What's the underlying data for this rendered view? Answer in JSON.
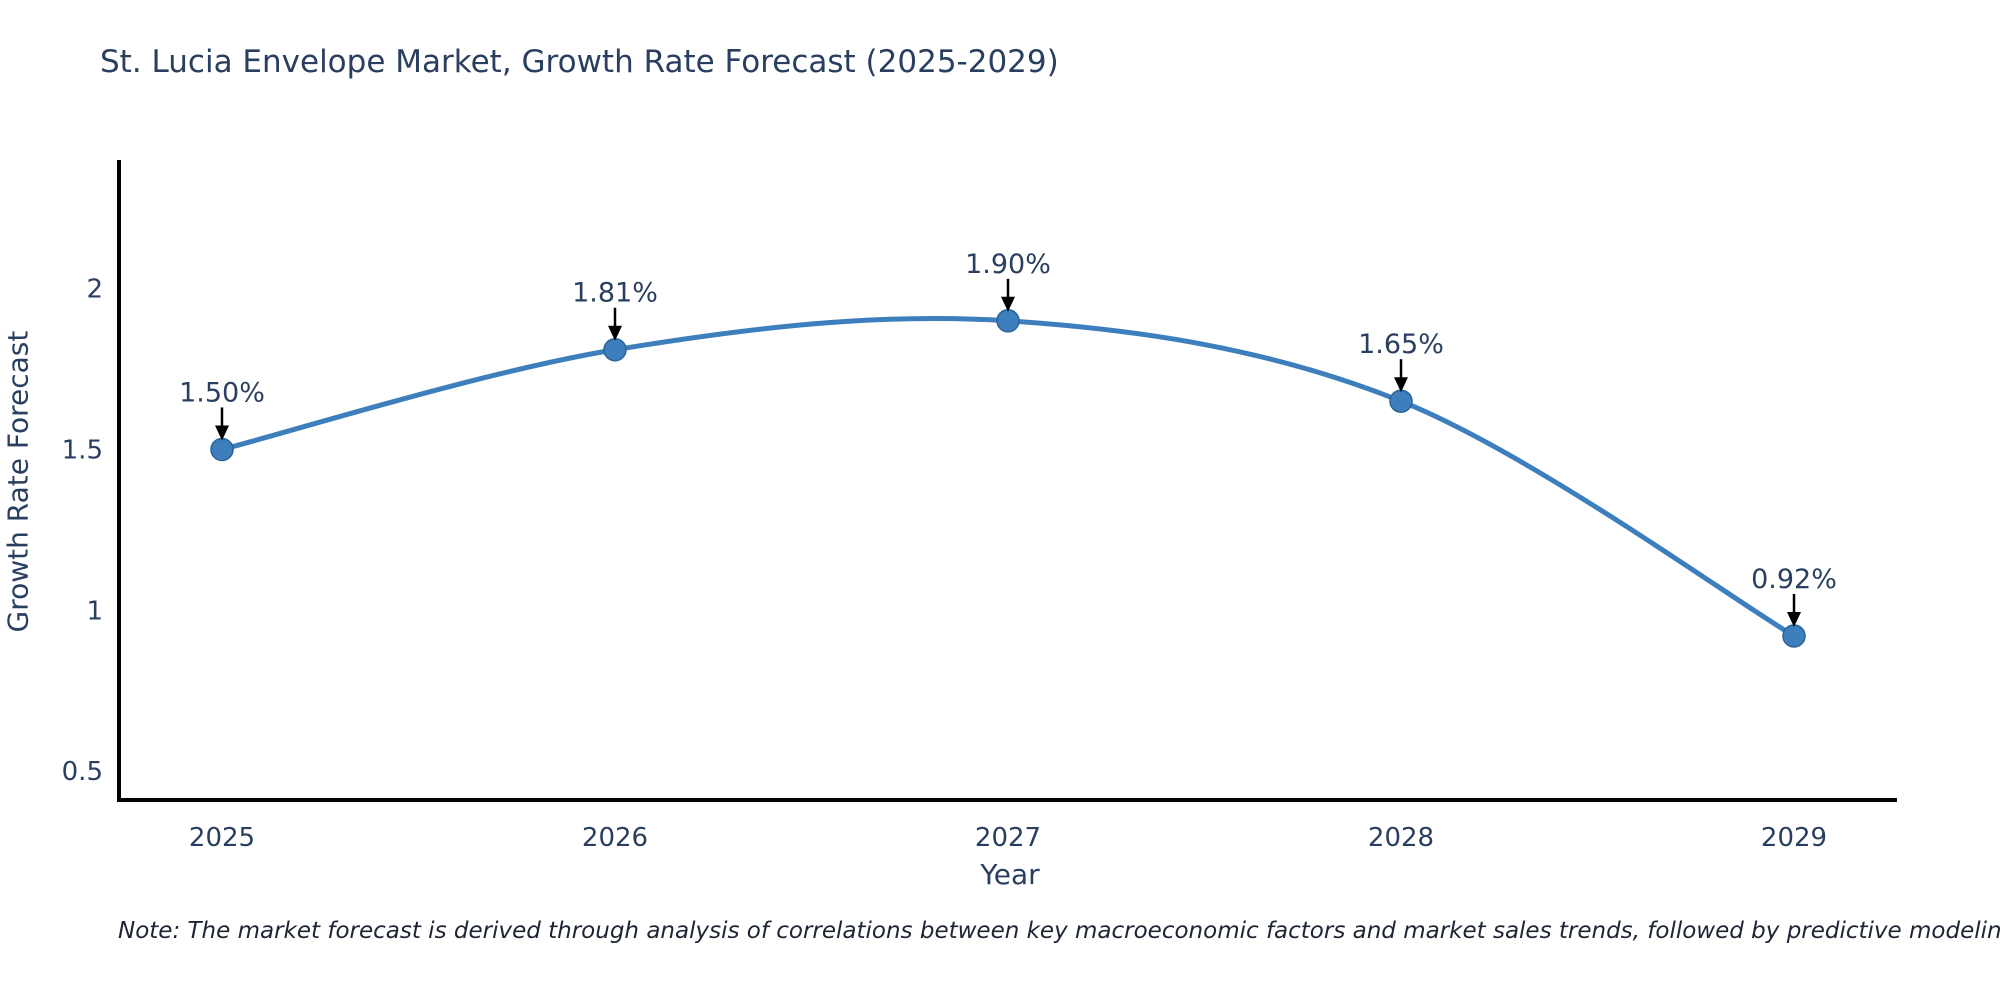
{
  "page": {
    "background_color": "#ffffff"
  },
  "chart_data": {
    "type": "line",
    "title": "St. Lucia Envelope Market, Growth Rate Forecast (2025-2029)",
    "categories": [
      "2025",
      "2026",
      "2027",
      "2028",
      "2029"
    ],
    "values": [
      1.5,
      1.81,
      1.9,
      1.65,
      0.92
    ],
    "point_labels": [
      "1.50%",
      "1.81%",
      "1.90%",
      "1.65%",
      "0.92%"
    ],
    "xlabel": "Year",
    "ylabel": "Growth Rate Forecast",
    "yticks": [
      0.5,
      1,
      1.5,
      2
    ],
    "ylim": [
      0.41,
      2.4
    ],
    "line_shape": "spline",
    "grid": false,
    "legend_position": "none",
    "line_color": "#3d7fbd",
    "marker_color": "#3d7fbd",
    "marker_edge_color": "#2a6496",
    "axis_color": "#000000",
    "text_color": "#2a3f5f",
    "annotation_arrow_color": "#000000",
    "note": "Note: The market forecast is derived through analysis of correlations between key macroeconomic factors and market sales trends, followed by predictive modeling to project future sales"
  }
}
